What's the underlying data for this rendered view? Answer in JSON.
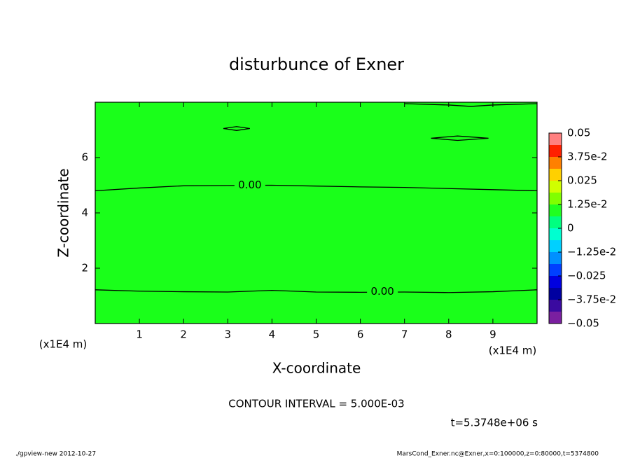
{
  "chart_data": {
    "type": "contour",
    "title": "disturbunce of Exner",
    "xlabel": "X-coordinate",
    "ylabel": "Z-coordinate",
    "x_unit": "(x1E4 m)",
    "xlim": [
      0,
      10
    ],
    "ylim": [
      0,
      8
    ],
    "xticks": [
      1,
      2,
      3,
      4,
      5,
      6,
      7,
      8,
      9
    ],
    "yticks": [
      2,
      4,
      6
    ],
    "fill_color": "#1aff1a",
    "line_color": "#000000",
    "contours": [
      {
        "x": [
          0,
          1,
          2,
          3,
          4,
          5,
          6,
          7,
          8,
          9,
          10
        ],
        "y": [
          1.22,
          1.17,
          1.15,
          1.14,
          1.2,
          1.14,
          1.13,
          1.14,
          1.12,
          1.15,
          1.22
        ]
      },
      {
        "x": [
          0,
          1,
          2,
          3,
          4,
          5,
          6,
          7,
          8,
          9,
          10
        ],
        "y": [
          4.8,
          4.9,
          4.98,
          4.99,
          5.0,
          4.97,
          4.94,
          4.92,
          4.88,
          4.84,
          4.8
        ]
      },
      {
        "x": [
          2.9,
          3.2,
          3.5,
          3.2,
          2.9
        ],
        "y": [
          7.05,
          7.12,
          7.05,
          6.98,
          7.05
        ]
      },
      {
        "x": [
          7.6,
          8.2,
          8.9,
          8.2,
          7.6
        ],
        "y": [
          6.7,
          6.78,
          6.7,
          6.62,
          6.7
        ]
      },
      {
        "x": [
          7.0,
          8.0,
          8.5,
          9.0,
          10
        ],
        "y": [
          7.95,
          7.9,
          7.85,
          7.9,
          7.95
        ]
      }
    ],
    "contour_labels": [
      {
        "x": 3.5,
        "y": 5.0,
        "value": 0,
        "label": "0.00"
      },
      {
        "x": 6.5,
        "y": 1.15,
        "value": 0,
        "label": "0.00"
      }
    ],
    "colorbar": {
      "bins": [
        -0.05,
        -0.04375,
        -0.0375,
        -0.03125,
        -0.025,
        -0.01875,
        -0.0125,
        -0.00625,
        0,
        0.00625,
        0.0125,
        0.01875,
        0.025,
        0.03125,
        0.0375,
        0.04375,
        0.05
      ],
      "colors": [
        "#7a1fa0",
        "#3a0aa0",
        "#0000a0",
        "#0000e0",
        "#0040ff",
        "#0090ff",
        "#00d0ff",
        "#00ffd0",
        "#00ff80",
        "#20ff20",
        "#80ff00",
        "#d0ff00",
        "#ffd000",
        "#ff8000",
        "#ff2000",
        "#ff8080"
      ],
      "ticks": [
        {
          "value": 0.05,
          "label": "0.05"
        },
        {
          "value": 0.0375,
          "label": "3.75e-2"
        },
        {
          "value": 0.025,
          "label": "0.025"
        },
        {
          "value": 0.0125,
          "label": "1.25e-2"
        },
        0,
        {
          "value": -0.0125,
          "label": "−1.25e-2"
        },
        {
          "value": -0.025,
          "label": "−0.025"
        },
        {
          "value": -0.0375,
          "label": "−3.75e-2"
        },
        {
          "value": -0.05,
          "label": "−0.05"
        }
      ]
    },
    "contour_interval": "CONTOUR INTERVAL = 5.000E-03",
    "time_label": "t=5.3748e+06 s",
    "footer_left": "./gpview-new  2012-10-27",
    "footer_right": "MarsCond_Exner.nc@Exner,x=0:100000,z=0:80000,t=5374800"
  }
}
